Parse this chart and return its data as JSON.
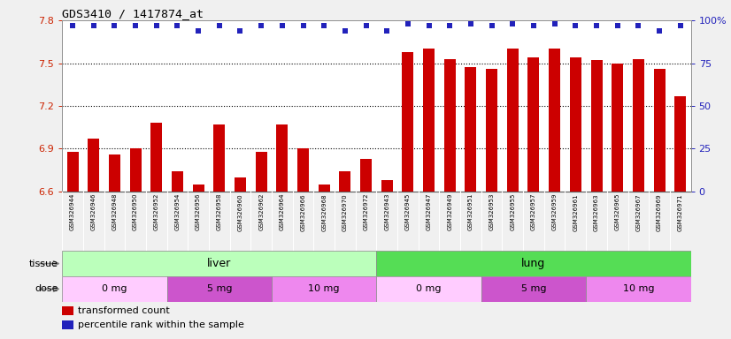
{
  "title": "GDS3410 / 1417874_at",
  "samples": [
    "GSM326944",
    "GSM326946",
    "GSM326948",
    "GSM326950",
    "GSM326952",
    "GSM326954",
    "GSM326956",
    "GSM326958",
    "GSM326960",
    "GSM326962",
    "GSM326964",
    "GSM326966",
    "GSM326968",
    "GSM326970",
    "GSM326972",
    "GSM326943",
    "GSM326945",
    "GSM326947",
    "GSM326949",
    "GSM326951",
    "GSM326953",
    "GSM326955",
    "GSM326957",
    "GSM326959",
    "GSM326961",
    "GSM326963",
    "GSM326965",
    "GSM326967",
    "GSM326969",
    "GSM326971"
  ],
  "bar_values": [
    6.88,
    6.97,
    6.86,
    6.9,
    7.08,
    6.74,
    6.65,
    7.07,
    6.7,
    6.88,
    7.07,
    6.9,
    6.65,
    6.74,
    6.83,
    6.68,
    7.58,
    7.6,
    7.53,
    7.47,
    7.46,
    7.6,
    7.54,
    7.6,
    7.54,
    7.52,
    7.5,
    7.53,
    7.46,
    7.27
  ],
  "percentile_values": [
    97,
    97,
    97,
    97,
    97,
    97,
    94,
    97,
    94,
    97,
    97,
    97,
    97,
    94,
    97,
    94,
    98,
    97,
    97,
    98,
    97,
    98,
    97,
    98,
    97,
    97,
    97,
    97,
    94,
    97
  ],
  "bar_color": "#cc0000",
  "dot_color": "#2222bb",
  "ylim_left": [
    6.6,
    7.8
  ],
  "ylim_right": [
    0,
    100
  ],
  "yticks_left": [
    6.6,
    6.9,
    7.2,
    7.5,
    7.8
  ],
  "yticks_right": [
    0,
    25,
    50,
    75,
    100
  ],
  "hlines": [
    6.9,
    7.2,
    7.5
  ],
  "tissue_groups": [
    {
      "label": "liver",
      "start": 0,
      "end": 15,
      "color": "#bbffbb"
    },
    {
      "label": "lung",
      "start": 15,
      "end": 30,
      "color": "#55dd55"
    }
  ],
  "dose_groups": [
    {
      "label": "0 mg",
      "start": 0,
      "end": 5,
      "color": "#ffccff"
    },
    {
      "label": "5 mg",
      "start": 5,
      "end": 10,
      "color": "#dd55dd"
    },
    {
      "label": "10 mg",
      "start": 10,
      "end": 15,
      "color": "#ee88ee"
    },
    {
      "label": "0 mg",
      "start": 15,
      "end": 20,
      "color": "#ffccff"
    },
    {
      "label": "5 mg",
      "start": 20,
      "end": 25,
      "color": "#dd55dd"
    },
    {
      "label": "10 mg",
      "start": 25,
      "end": 30,
      "color": "#ee88ee"
    }
  ],
  "legend_items": [
    {
      "label": "transformed count",
      "color": "#cc0000"
    },
    {
      "label": "percentile rank within the sample",
      "color": "#2222bb"
    }
  ],
  "fig_bg": "#f0f0f0",
  "plot_bg": "#ffffff",
  "tick_bg": "#d0d0d0",
  "left_label_color": "#cc2200",
  "right_label_color": "#2222bb"
}
